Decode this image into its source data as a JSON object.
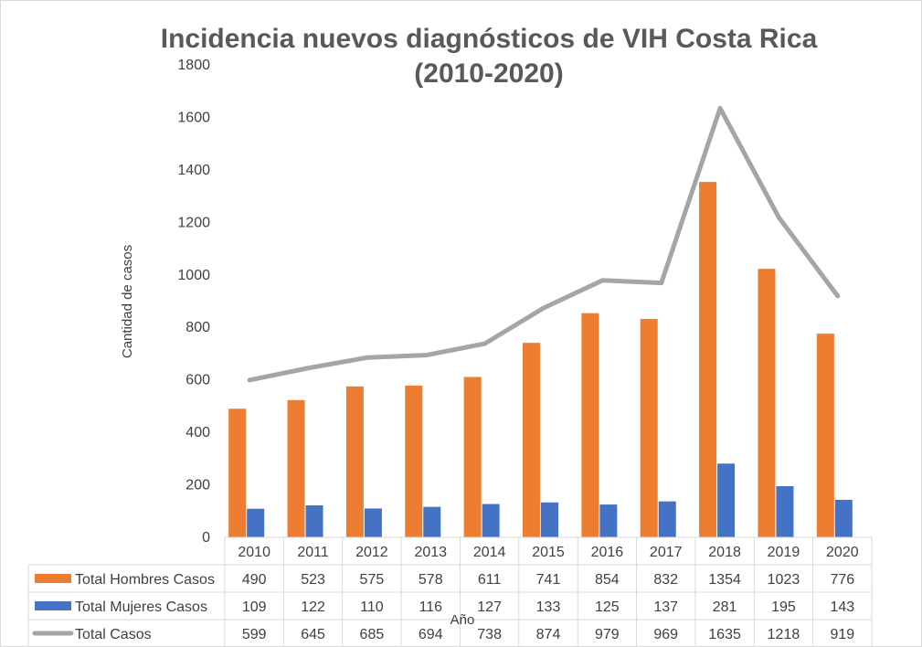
{
  "chart_data": {
    "type": "bar",
    "title": "Incidencia nuevos diagnósticos de VIH Costa Rica (2010-2020)",
    "xlabel": "Año",
    "ylabel": "Cantidad de casos",
    "ylim": [
      0,
      1800
    ],
    "yticks": [
      0,
      200,
      400,
      600,
      800,
      1000,
      1200,
      1400,
      1600,
      1800
    ],
    "categories": [
      "2010",
      "2011",
      "2012",
      "2013",
      "2014",
      "2015",
      "2016",
      "2017",
      "2018",
      "2019",
      "2020"
    ],
    "series": [
      {
        "name": "Total Hombres Casos",
        "kind": "bar",
        "color": "#ed7d31",
        "values": [
          490,
          523,
          575,
          578,
          611,
          741,
          854,
          832,
          1354,
          1023,
          776
        ]
      },
      {
        "name": "Total Mujeres Casos",
        "kind": "bar",
        "color": "#4472c4",
        "values": [
          109,
          122,
          110,
          116,
          127,
          133,
          125,
          137,
          281,
          195,
          143
        ]
      },
      {
        "name": "Total Casos",
        "kind": "line",
        "color": "#a5a5a5",
        "values": [
          599,
          645,
          685,
          694,
          738,
          874,
          979,
          969,
          1635,
          1218,
          919
        ]
      }
    ],
    "grid": false,
    "legend": "data-table-below"
  }
}
